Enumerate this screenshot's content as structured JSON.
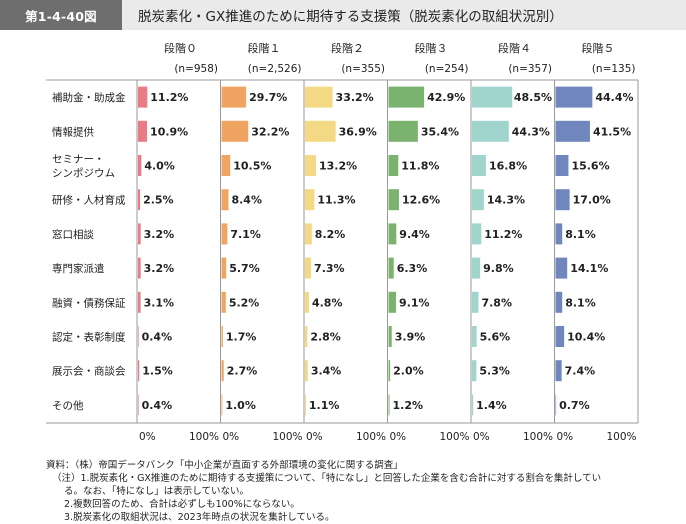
{
  "figure": {
    "number": "第1-4-40図",
    "title": "脱炭素化・GX推進のために期待する支援策（脱炭素化の取組状況別）"
  },
  "chart_data": {
    "type": "bar",
    "orientation": "horizontal",
    "xlim": [
      0,
      100
    ],
    "axis_min_label": "0%",
    "axis_max_label": "100%",
    "categories": [
      "補助金・助成金",
      "情報提供",
      "セミナー・\nシンポジウム",
      "研修・人材育成",
      "窓口相談",
      "専門家派遣",
      "融資・債務保証",
      "認定・表彰制度",
      "展示会・商談会",
      "その他"
    ],
    "series": [
      {
        "name": "段階０",
        "n": "(n=958)",
        "color": "#e87b84",
        "values": [
          11.2,
          10.9,
          4.0,
          2.5,
          3.2,
          3.2,
          3.1,
          0.4,
          1.5,
          0.4
        ],
        "labels": [
          "11.2%",
          "10.9%",
          "4.0%",
          "2.5%",
          "3.2%",
          "3.2%",
          "3.1%",
          "0.4%",
          "1.5%",
          "0.4%"
        ]
      },
      {
        "name": "段階１",
        "n": "(n=2,526)",
        "color": "#f0a461",
        "values": [
          29.7,
          32.2,
          10.5,
          8.4,
          7.1,
          5.7,
          5.2,
          1.7,
          2.7,
          1.0
        ],
        "labels": [
          "29.7%",
          "32.2%",
          "10.5%",
          "8.4%",
          "7.1%",
          "5.7%",
          "5.2%",
          "1.7%",
          "2.7%",
          "1.0%"
        ]
      },
      {
        "name": "段階２",
        "n": "(n=355)",
        "color": "#f3d983",
        "values": [
          33.2,
          36.9,
          13.2,
          11.3,
          8.2,
          7.3,
          4.8,
          2.8,
          3.4,
          1.1
        ],
        "labels": [
          "33.2%",
          "36.9%",
          "13.2%",
          "11.3%",
          "8.2%",
          "7.3%",
          "4.8%",
          "2.8%",
          "3.4%",
          "1.1%"
        ]
      },
      {
        "name": "段階３",
        "n": "(n=254)",
        "color": "#7bb36e",
        "values": [
          42.9,
          35.4,
          11.8,
          12.6,
          9.4,
          6.3,
          9.1,
          3.9,
          2.0,
          1.2
        ],
        "labels": [
          "42.9%",
          "35.4%",
          "11.8%",
          "12.6%",
          "9.4%",
          "6.3%",
          "9.1%",
          "3.9%",
          "2.0%",
          "1.2%"
        ]
      },
      {
        "name": "段階４",
        "n": "(n=357)",
        "color": "#9fd5cc",
        "values": [
          48.5,
          44.3,
          16.8,
          14.3,
          11.2,
          9.8,
          7.8,
          5.6,
          5.3,
          1.4
        ],
        "labels": [
          "48.5%",
          "44.3%",
          "16.8%",
          "14.3%",
          "11.2%",
          "9.8%",
          "7.8%",
          "5.6%",
          "5.3%",
          "1.4%"
        ]
      },
      {
        "name": "段階５",
        "n": "(n=135)",
        "color": "#6f87bc",
        "values": [
          44.4,
          41.5,
          15.6,
          17.0,
          8.1,
          14.1,
          8.1,
          10.4,
          7.4,
          0.7
        ],
        "labels": [
          "44.4%",
          "41.5%",
          "15.6%",
          "17.0%",
          "8.1%",
          "14.1%",
          "8.1%",
          "10.4%",
          "7.4%",
          "0.7%"
        ]
      }
    ]
  },
  "notes": {
    "source": "資料：（株）帝国データバンク「中小企業が直面する外部環境の変化に関する調査」",
    "note1": "（注）1.脱炭素化・GX推進のために期待する支援策について、「特になし」と回答した企業を含む合計に対する割合を集計してい",
    "note1b": "る。なお、「特になし」は表示していない。",
    "note2": "2.複数回答のため、合計は必ずしも100%にならない。",
    "note3": "3.脱炭素化の取組状況は、2023年時点の状況を集計している。"
  }
}
